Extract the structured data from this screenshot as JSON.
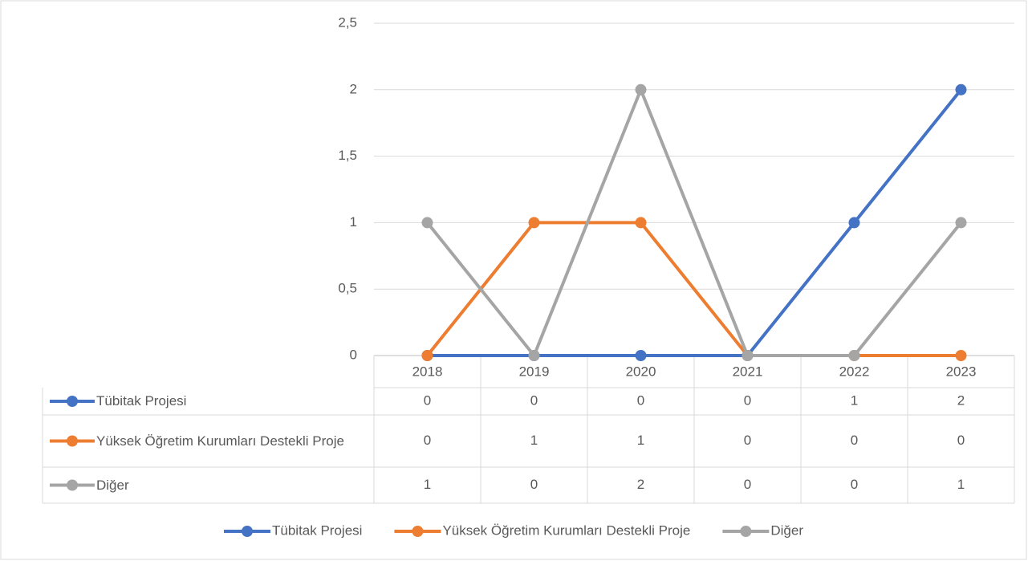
{
  "chart_data": {
    "type": "line",
    "categories": [
      "2018",
      "2019",
      "2020",
      "2021",
      "2022",
      "2023"
    ],
    "series": [
      {
        "name": "Tübitak Projesi",
        "color": "#4472c4",
        "values": [
          0,
          0,
          0,
          0,
          1,
          2
        ]
      },
      {
        "name": "Yüksek Öğretim Kurumları Destekli Proje",
        "color": "#ed7d31",
        "values": [
          0,
          1,
          1,
          0,
          0,
          0
        ]
      },
      {
        "name": "Diğer",
        "color": "#a5a5a5",
        "values": [
          1,
          0,
          2,
          0,
          0,
          1
        ]
      }
    ],
    "ylim": [
      0,
      2.5
    ],
    "yticks": [
      0,
      {
        "value": 0.5,
        "label": "0,5"
      },
      1,
      {
        "value": 1.5,
        "label": "1,5"
      },
      2,
      {
        "value": 2.5,
        "label": "2,5"
      }
    ],
    "grid": true,
    "data_table": true,
    "legend": "bottom"
  }
}
